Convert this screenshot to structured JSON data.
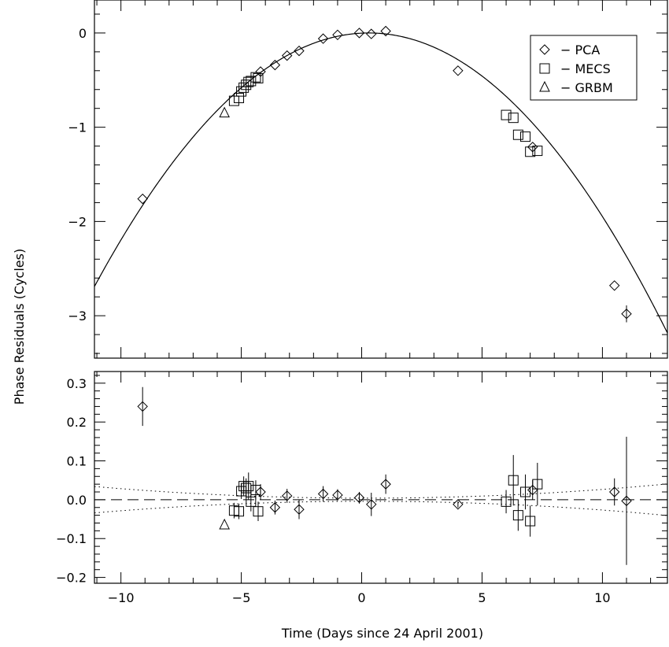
{
  "chart_data": [
    {
      "type": "scatter",
      "panel": "top",
      "ylabel": "Phase Residuals (Cycles)",
      "xlabel": "Time (Days since 24 April 2001)",
      "xlim": [
        -11.1,
        12.7
      ],
      "ylim": [
        -3.45,
        0.35
      ],
      "xticks": [
        -10,
        -5,
        0,
        5,
        10
      ],
      "yticks": [
        0,
        -1,
        -2,
        -3
      ],
      "yticklabels": [
        "0",
        "−1",
        "−2",
        "−3"
      ],
      "legend": {
        "placement": "top-right",
        "entries": [
          {
            "marker": "diamond",
            "label": "− PCA"
          },
          {
            "marker": "square",
            "label": "− MECS"
          },
          {
            "marker": "triangle",
            "label": "− GRBM"
          }
        ]
      },
      "model_curve": {
        "form": "parabola",
        "vertex_x": 0.3,
        "vertex_y": 0.0,
        "coefficient": -0.0207
      },
      "series": [
        {
          "name": "PCA",
          "marker": "diamond",
          "points": [
            {
              "x": -9.1,
              "y": -1.76
            },
            {
              "x": -4.2,
              "y": -0.41
            },
            {
              "x": -3.6,
              "y": -0.34
            },
            {
              "x": -3.1,
              "y": -0.24
            },
            {
              "x": -2.6,
              "y": -0.19
            },
            {
              "x": -1.6,
              "y": -0.06
            },
            {
              "x": -1.0,
              "y": -0.02
            },
            {
              "x": -0.1,
              "y": 0.0
            },
            {
              "x": 0.4,
              "y": -0.01
            },
            {
              "x": 1.0,
              "y": 0.02
            },
            {
              "x": 4.0,
              "y": -0.4
            },
            {
              "x": 7.1,
              "y": -1.21
            },
            {
              "x": 10.5,
              "y": -2.68
            },
            {
              "x": 11.0,
              "y": -2.98,
              "err": 0.09
            }
          ]
        },
        {
          "name": "MECS",
          "marker": "square",
          "points": [
            {
              "x": -5.3,
              "y": -0.72
            },
            {
              "x": -5.1,
              "y": -0.69
            },
            {
              "x": -5.0,
              "y": -0.62
            },
            {
              "x": -4.9,
              "y": -0.58
            },
            {
              "x": -4.8,
              "y": -0.55
            },
            {
              "x": -4.7,
              "y": -0.52
            },
            {
              "x": -4.6,
              "y": -0.51
            },
            {
              "x": -4.4,
              "y": -0.47
            },
            {
              "x": -4.3,
              "y": -0.48
            },
            {
              "x": 6.0,
              "y": -0.87
            },
            {
              "x": 6.3,
              "y": -0.9
            },
            {
              "x": 6.5,
              "y": -1.08
            },
            {
              "x": 6.8,
              "y": -1.1
            },
            {
              "x": 7.0,
              "y": -1.26
            },
            {
              "x": 7.3,
              "y": -1.25
            }
          ]
        },
        {
          "name": "GRBM",
          "marker": "triangle",
          "points": [
            {
              "x": -5.7,
              "y": -0.85
            }
          ]
        }
      ]
    },
    {
      "type": "scatter",
      "panel": "bottom",
      "xlabel": "Time (Days since 24 April 2001)",
      "xlim": [
        -11.1,
        12.7
      ],
      "ylim": [
        -0.215,
        0.33
      ],
      "xticks": [
        -10,
        -5,
        0,
        5,
        10
      ],
      "xticklabels": [
        "−10",
        "−5",
        "0",
        "5",
        "10"
      ],
      "yticks": [
        0.3,
        0.2,
        0.1,
        0.0,
        -0.1,
        -0.2
      ],
      "yticklabels": [
        "0.3",
        "0.2",
        "0.1",
        "0.0",
        "−0.1",
        "−0.2"
      ],
      "reference_lines": [
        {
          "style": "dashed",
          "y": 0.0
        },
        {
          "style": "dotted",
          "form": "uncertainty envelope",
          "center_x": 0.2,
          "half_width_at_edges": 0.04
        }
      ],
      "series": [
        {
          "name": "PCA",
          "marker": "diamond",
          "points": [
            {
              "x": -9.1,
              "y": 0.24,
              "err": 0.05
            },
            {
              "x": -4.2,
              "y": 0.02,
              "err": 0.02
            },
            {
              "x": -3.6,
              "y": -0.02,
              "err": 0.018
            },
            {
              "x": -3.1,
              "y": 0.01,
              "err": 0.018
            },
            {
              "x": -2.6,
              "y": -0.025,
              "err": 0.025
            },
            {
              "x": -1.6,
              "y": 0.015,
              "err": 0.02
            },
            {
              "x": -1.0,
              "y": 0.012,
              "err": 0.015
            },
            {
              "x": -0.1,
              "y": 0.005,
              "err": 0.015
            },
            {
              "x": 0.4,
              "y": -0.012,
              "err": 0.03
            },
            {
              "x": 1.0,
              "y": 0.04,
              "err": 0.025
            },
            {
              "x": 4.0,
              "y": -0.012,
              "err": 0.008
            },
            {
              "x": 7.1,
              "y": 0.025,
              "err": 0.025
            },
            {
              "x": 10.5,
              "y": 0.02,
              "err": 0.035
            },
            {
              "x": 11.0,
              "y": -0.003,
              "err": 0.165
            }
          ]
        },
        {
          "name": "MECS",
          "marker": "square",
          "points": [
            {
              "x": -5.3,
              "y": -0.028,
              "err": 0.02
            },
            {
              "x": -5.1,
              "y": -0.03,
              "err": 0.02
            },
            {
              "x": -5.0,
              "y": 0.022,
              "err": 0.02
            },
            {
              "x": -4.9,
              "y": 0.035,
              "err": 0.025
            },
            {
              "x": -4.8,
              "y": 0.03,
              "err": 0.025
            },
            {
              "x": -4.7,
              "y": 0.035,
              "err": 0.035
            },
            {
              "x": -4.6,
              "y": -0.005,
              "err": 0.025
            },
            {
              "x": -4.4,
              "y": 0.025,
              "err": 0.025
            },
            {
              "x": -4.3,
              "y": -0.03,
              "err": 0.025
            },
            {
              "x": 6.0,
              "y": -0.005,
              "err": 0.03
            },
            {
              "x": 6.3,
              "y": 0.05,
              "err": 0.065
            },
            {
              "x": 6.5,
              "y": -0.04,
              "err": 0.04
            },
            {
              "x": 6.8,
              "y": 0.02,
              "err": 0.045
            },
            {
              "x": 7.0,
              "y": -0.055,
              "err": 0.04
            },
            {
              "x": 7.3,
              "y": 0.04,
              "err": 0.055
            }
          ]
        },
        {
          "name": "GRBM",
          "marker": "triangle",
          "points": [
            {
              "x": -5.7,
              "y": -0.065
            }
          ]
        }
      ]
    }
  ]
}
